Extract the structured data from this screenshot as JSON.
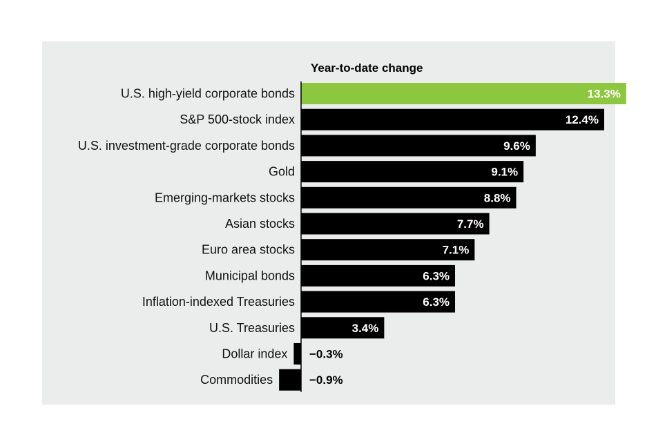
{
  "chart_data": {
    "type": "bar",
    "orientation": "horizontal",
    "title": "Year-to-date change",
    "categories": [
      "U.S. high-yield corporate bonds",
      "S&P 500-stock index",
      "U.S. investment-grade corporate bonds",
      "Gold",
      "Emerging-markets stocks",
      "Asian stocks",
      "Euro area stocks",
      "Municipal bonds",
      "Inflation-indexed Treasuries",
      "U.S. Treasuries",
      "Dollar index",
      "Commodities"
    ],
    "values": [
      13.3,
      12.4,
      9.6,
      9.1,
      8.8,
      7.7,
      7.1,
      6.3,
      6.3,
      3.4,
      -0.3,
      -0.9
    ],
    "value_labels": [
      "13.3%",
      "12.4%",
      "9.6%",
      "9.1%",
      "8.8%",
      "7.7%",
      "7.1%",
      "6.3%",
      "6.3%",
      "3.4%",
      "−0.3%",
      "−0.9%"
    ],
    "unit": "%",
    "colors": {
      "highlight": "#8dc63f",
      "bar": "#000000",
      "panel_background": "#ebecec",
      "axis": "#000000"
    },
    "highlight_index": 0,
    "xlim": [
      -0.9,
      13.3
    ],
    "grid": false,
    "legend": "none"
  }
}
